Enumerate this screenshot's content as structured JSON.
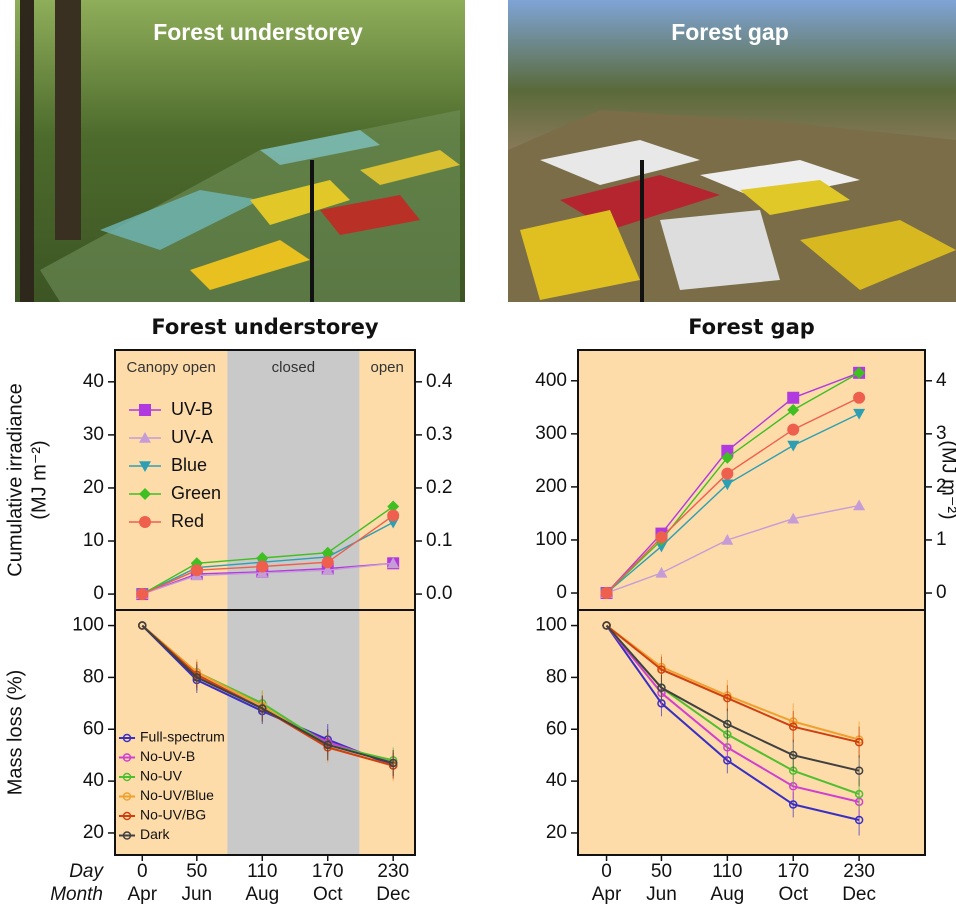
{
  "photos": [
    {
      "label": "Forest understorey"
    },
    {
      "label": "Forest gap"
    }
  ],
  "chart_data": [
    {
      "type": "line",
      "title": "Forest understorey",
      "ylabel": [
        "Cumulative irradiance",
        "(MJ m⁻²)"
      ],
      "x": [
        0,
        50,
        110,
        170,
        230
      ],
      "xlim": [
        -25,
        250
      ],
      "ylim": [
        -3,
        46
      ],
      "yticks": [
        0,
        10,
        20,
        30,
        40
      ],
      "y2lim": [
        -0.03,
        0.46
      ],
      "y2ticks": [
        {
          "value": 0,
          "label": "0.0"
        },
        0.1,
        0.2,
        0.3,
        0.4
      ],
      "plot_bg": "#fddcaa",
      "shaded": {
        "from": 78,
        "to": 199,
        "color": "#c9c9c9"
      },
      "annotations": [
        "Canopy open",
        "closed",
        "open"
      ],
      "series": [
        {
          "name": "UV-B",
          "color": "#b03ae0",
          "marker": "square",
          "values": [
            0,
            3.8,
            4.2,
            4.8,
            5.8
          ]
        },
        {
          "name": "UV-A",
          "color": "#c59cd6",
          "marker": "triangle",
          "values": [
            0,
            3.5,
            4.0,
            4.5,
            5.8
          ]
        },
        {
          "name": "Blue",
          "color": "#2e9fb2",
          "marker": "triangle-down",
          "values": [
            0,
            5.0,
            6.0,
            7.0,
            13.5
          ]
        },
        {
          "name": "Green",
          "color": "#3fbf22",
          "marker": "diamond",
          "values": [
            0,
            5.8,
            6.8,
            7.8,
            16.5
          ]
        },
        {
          "name": "Red",
          "color": "#ef5f4e",
          "marker": "circle",
          "values": [
            0,
            4.5,
            5.2,
            6.0,
            14.8
          ]
        }
      ]
    },
    {
      "type": "line",
      "title": "Forest gap",
      "y2label": "(MJ m⁻²)",
      "x": [
        0,
        50,
        110,
        170,
        230
      ],
      "xlim": [
        -26,
        290
      ],
      "ylim": [
        -32,
        458
      ],
      "yticks": [
        0,
        100,
        200,
        300,
        400
      ],
      "y2lim": [
        -0.32,
        4.58
      ],
      "y2ticks": [
        0,
        1,
        2,
        3,
        4
      ],
      "plot_bg": "#fddcaa",
      "series": [
        {
          "color": "#b03ae0",
          "marker": "square",
          "values": [
            0,
            112,
            268,
            368,
            415
          ]
        },
        {
          "color": "#c59cd6",
          "marker": "triangle",
          "values": [
            0,
            38,
            100,
            140,
            165
          ]
        },
        {
          "color": "#2e9fb2",
          "marker": "triangle-down",
          "values": [
            0,
            88,
            205,
            278,
            338
          ]
        },
        {
          "color": "#3fbf22",
          "marker": "diamond",
          "values": [
            0,
            100,
            255,
            345,
            415
          ]
        },
        {
          "color": "#ef5f4e",
          "marker": "circle",
          "values": [
            0,
            105,
            225,
            308,
            368
          ]
        }
      ]
    },
    {
      "type": "line",
      "ylabel": [
        "Mass loss (%)"
      ],
      "xlabel": [
        "Day",
        "Month"
      ],
      "x": [
        0,
        50,
        110,
        170,
        230
      ],
      "xlim": [
        -25,
        250
      ],
      "xticks": [
        0,
        50,
        110,
        170,
        230
      ],
      "months": [
        "Apr",
        "Jun",
        "Aug",
        "Oct",
        "Dec"
      ],
      "ylim": [
        11.5,
        106
      ],
      "yticks": [
        20,
        40,
        60,
        80,
        100
      ],
      "plot_bg": "#fddcaa",
      "shaded": {
        "from": 78,
        "to": 199,
        "color": "#c9c9c9"
      },
      "series": [
        {
          "name": "Full-spectrum",
          "color": "#3a2fc2",
          "marker": "open-circle",
          "values": [
            100,
            79,
            67,
            56,
            46
          ],
          "errors": [
            0,
            5,
            5,
            6,
            5
          ]
        },
        {
          "name": "No-UV-B",
          "color": "#d03fd0",
          "marker": "open-circle",
          "values": [
            100,
            81,
            68,
            55,
            47
          ],
          "errors": [
            0,
            5,
            5,
            5,
            5
          ]
        },
        {
          "name": "No-UV",
          "color": "#4fbf30",
          "marker": "open-circle",
          "values": [
            100,
            82,
            70,
            54,
            48
          ],
          "errors": [
            0,
            4,
            5,
            5,
            5
          ]
        },
        {
          "name": "No-UV/Blue",
          "color": "#f0a02e",
          "marker": "open-circle",
          "values": [
            100,
            82,
            69,
            53,
            46
          ],
          "errors": [
            0,
            5,
            6,
            6,
            6
          ]
        },
        {
          "name": "No-UV/BG",
          "color": "#cf4010",
          "marker": "open-circle",
          "values": [
            100,
            81,
            68,
            53,
            46
          ],
          "errors": [
            0,
            5,
            5,
            5,
            5
          ]
        },
        {
          "name": "Dark",
          "color": "#404040",
          "marker": "open-circle",
          "values": [
            100,
            80,
            68,
            54,
            47
          ],
          "errors": [
            0,
            5,
            5,
            6,
            5
          ]
        }
      ]
    },
    {
      "type": "line",
      "x": [
        0,
        50,
        110,
        170,
        230
      ],
      "xlim": [
        -26,
        290
      ],
      "xticks": [
        0,
        50,
        110,
        170,
        230
      ],
      "months": [
        "Apr",
        "Jun",
        "Aug",
        "Oct",
        "Dec"
      ],
      "ylim": [
        11.5,
        106
      ],
      "yticks": [
        20,
        40,
        60,
        80,
        100
      ],
      "plot_bg": "#fddcaa",
      "series": [
        {
          "color": "#3a2fc2",
          "marker": "open-circle",
          "values": [
            100,
            70,
            48,
            31,
            25
          ],
          "errors": [
            0,
            5,
            5,
            5,
            6
          ]
        },
        {
          "color": "#d03fd0",
          "marker": "open-circle",
          "values": [
            100,
            74,
            53,
            38,
            32
          ],
          "errors": [
            0,
            5,
            5,
            5,
            5
          ]
        },
        {
          "color": "#4fbf30",
          "marker": "open-circle",
          "values": [
            100,
            76,
            58,
            44,
            35
          ],
          "errors": [
            0,
            5,
            6,
            6,
            6
          ]
        },
        {
          "color": "#f0a02e",
          "marker": "open-circle",
          "values": [
            100,
            84,
            73,
            63,
            56
          ],
          "errors": [
            0,
            5,
            6,
            7,
            7
          ]
        },
        {
          "color": "#cf4010",
          "marker": "open-circle",
          "values": [
            100,
            83,
            72,
            61,
            55
          ],
          "errors": [
            0,
            5,
            5,
            6,
            6
          ]
        },
        {
          "color": "#404040",
          "marker": "open-circle",
          "values": [
            100,
            76,
            62,
            50,
            44
          ],
          "errors": [
            0,
            5,
            6,
            6,
            6
          ]
        }
      ]
    }
  ]
}
